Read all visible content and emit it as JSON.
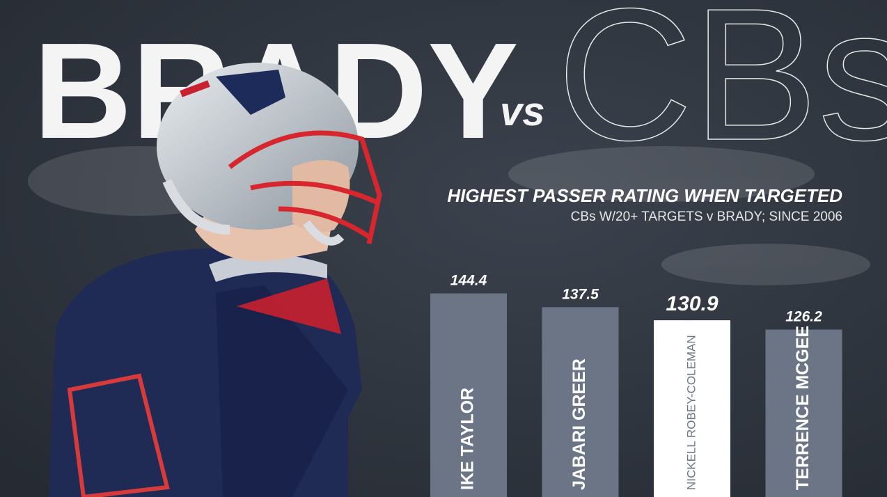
{
  "header": {
    "title": "BRADY",
    "connector": "vs",
    "title2": "CBs"
  },
  "chart_data": {
    "type": "bar",
    "title": "HIGHEST PASSER RATING WHEN TARGETED",
    "subtitle": "CBs W/20+ TARGETS v BRADY; SINCE 2006",
    "categories": [
      "IKE TAYLOR",
      "JABARI GREER",
      "NICKELL ROBEY-COLEMAN",
      "TERRENCE MCGEE"
    ],
    "values": [
      144.4,
      137.5,
      130.9,
      126.2
    ],
    "colors": [
      "#6b7586",
      "#6b7586",
      "#ffffff",
      "#6b7586"
    ],
    "ylim": [
      42,
      160
    ]
  }
}
